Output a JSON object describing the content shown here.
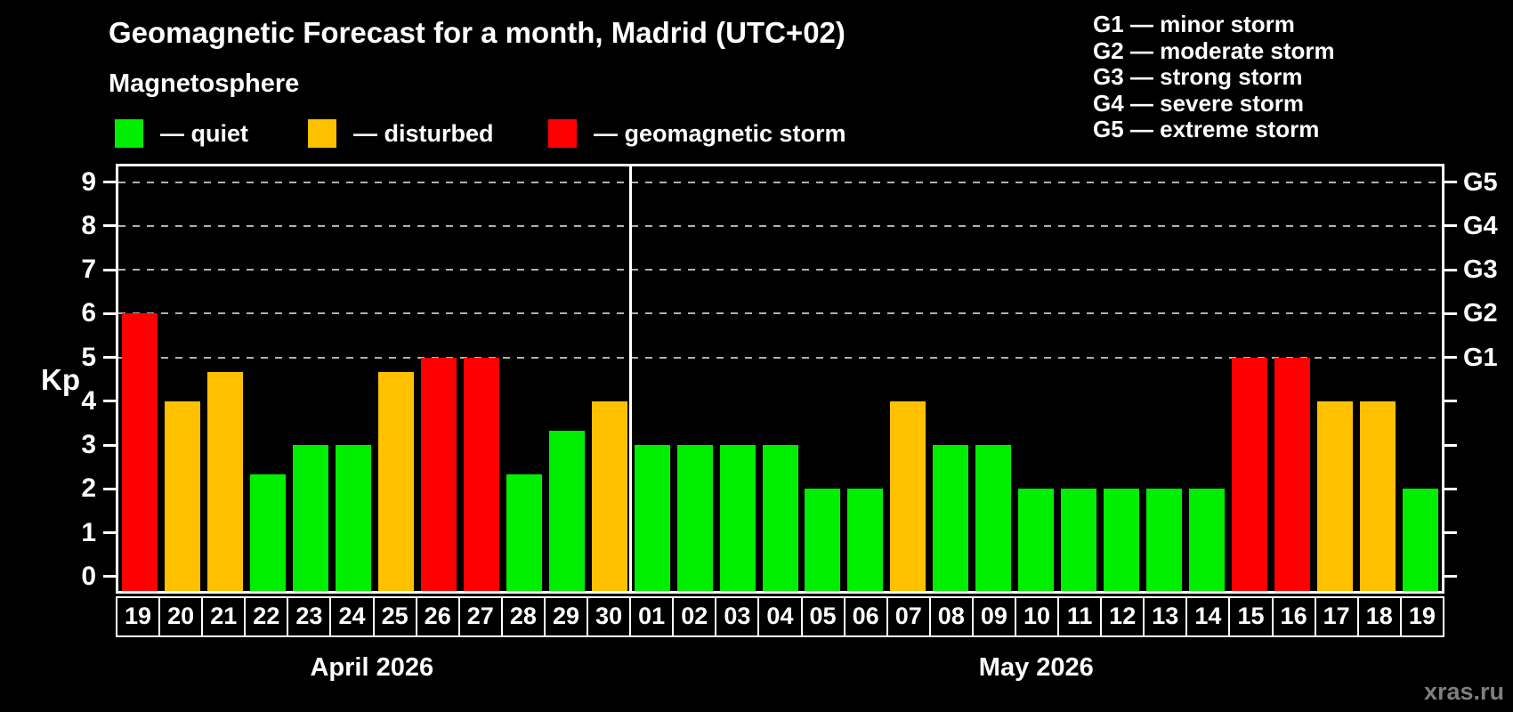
{
  "header": {
    "title": "Geomagnetic Forecast for a month, Madrid (UTC+02)",
    "subtitle": "Magnetosphere"
  },
  "legend": {
    "items": [
      {
        "label": "— quiet",
        "status": "quiet",
        "color": "#00ee00"
      },
      {
        "label": "— disturbed",
        "status": "disturbed",
        "color": "#ffc000"
      },
      {
        "label": "— geomagnetic storm",
        "status": "storm",
        "color": "#ff0000"
      }
    ]
  },
  "g_legend": {
    "items": [
      {
        "label": "G1 — minor storm"
      },
      {
        "label": "G2 — moderate storm"
      },
      {
        "label": "G3 — strong storm"
      },
      {
        "label": "G4 — severe storm"
      },
      {
        "label": "G5 — extreme storm"
      }
    ]
  },
  "colors": {
    "quiet": "#00ee00",
    "disturbed": "#ffc000",
    "storm": "#ff0000",
    "background": "#000000",
    "grid": "#b0b0b0",
    "axis": "#ffffff",
    "watermark": "#7f7f7f"
  },
  "watermark": "xras.ru",
  "chart_data": {
    "type": "bar",
    "title": "Geomagnetic Forecast for a month, Madrid (UTC+02)",
    "ylabel": "Kp",
    "ylim": [
      0,
      9
    ],
    "y_ticks": [
      0,
      1,
      2,
      3,
      4,
      5,
      6,
      7,
      8,
      9
    ],
    "grid_levels": [
      5,
      6,
      7,
      8,
      9
    ],
    "grid": "dashed horizontal at G-storm levels only",
    "legend_position": "top",
    "right_axis_labels": [
      {
        "label": "G1",
        "kp": 5
      },
      {
        "label": "G2",
        "kp": 6
      },
      {
        "label": "G3",
        "kp": 7
      },
      {
        "label": "G4",
        "kp": 8
      },
      {
        "label": "G5",
        "kp": 9
      }
    ],
    "months": [
      {
        "label": "April 2026",
        "day_count": 12
      },
      {
        "label": "May 2026",
        "day_count": 19
      }
    ],
    "bars": [
      {
        "month": "April 2026",
        "day": "19",
        "kp": 6.0,
        "status": "storm"
      },
      {
        "month": "April 2026",
        "day": "20",
        "kp": 4.0,
        "status": "disturbed"
      },
      {
        "month": "April 2026",
        "day": "21",
        "kp": 4.67,
        "status": "disturbed"
      },
      {
        "month": "April 2026",
        "day": "22",
        "kp": 2.33,
        "status": "quiet"
      },
      {
        "month": "April 2026",
        "day": "23",
        "kp": 3.0,
        "status": "quiet"
      },
      {
        "month": "April 2026",
        "day": "24",
        "kp": 3.0,
        "status": "quiet"
      },
      {
        "month": "April 2026",
        "day": "25",
        "kp": 4.67,
        "status": "disturbed"
      },
      {
        "month": "April 2026",
        "day": "26",
        "kp": 5.0,
        "status": "storm"
      },
      {
        "month": "April 2026",
        "day": "27",
        "kp": 5.0,
        "status": "storm"
      },
      {
        "month": "April 2026",
        "day": "28",
        "kp": 2.33,
        "status": "quiet"
      },
      {
        "month": "April 2026",
        "day": "29",
        "kp": 3.33,
        "status": "quiet"
      },
      {
        "month": "April 2026",
        "day": "30",
        "kp": 4.0,
        "status": "disturbed"
      },
      {
        "month": "May 2026",
        "day": "01",
        "kp": 3.0,
        "status": "quiet"
      },
      {
        "month": "May 2026",
        "day": "02",
        "kp": 3.0,
        "status": "quiet"
      },
      {
        "month": "May 2026",
        "day": "03",
        "kp": 3.0,
        "status": "quiet"
      },
      {
        "month": "May 2026",
        "day": "04",
        "kp": 3.0,
        "status": "quiet"
      },
      {
        "month": "May 2026",
        "day": "05",
        "kp": 2.0,
        "status": "quiet"
      },
      {
        "month": "May 2026",
        "day": "06",
        "kp": 2.0,
        "status": "quiet"
      },
      {
        "month": "May 2026",
        "day": "07",
        "kp": 4.0,
        "status": "disturbed"
      },
      {
        "month": "May 2026",
        "day": "08",
        "kp": 3.0,
        "status": "quiet"
      },
      {
        "month": "May 2026",
        "day": "09",
        "kp": 3.0,
        "status": "quiet"
      },
      {
        "month": "May 2026",
        "day": "10",
        "kp": 2.0,
        "status": "quiet"
      },
      {
        "month": "May 2026",
        "day": "11",
        "kp": 2.0,
        "status": "quiet"
      },
      {
        "month": "May 2026",
        "day": "12",
        "kp": 2.0,
        "status": "quiet"
      },
      {
        "month": "May 2026",
        "day": "13",
        "kp": 2.0,
        "status": "quiet"
      },
      {
        "month": "May 2026",
        "day": "14",
        "kp": 2.0,
        "status": "quiet"
      },
      {
        "month": "May 2026",
        "day": "15",
        "kp": 5.0,
        "status": "storm"
      },
      {
        "month": "May 2026",
        "day": "16",
        "kp": 5.0,
        "status": "storm"
      },
      {
        "month": "May 2026",
        "day": "17",
        "kp": 4.0,
        "status": "disturbed"
      },
      {
        "month": "May 2026",
        "day": "18",
        "kp": 4.0,
        "status": "disturbed"
      },
      {
        "month": "May 2026",
        "day": "19",
        "kp": 2.0,
        "status": "quiet"
      }
    ]
  }
}
